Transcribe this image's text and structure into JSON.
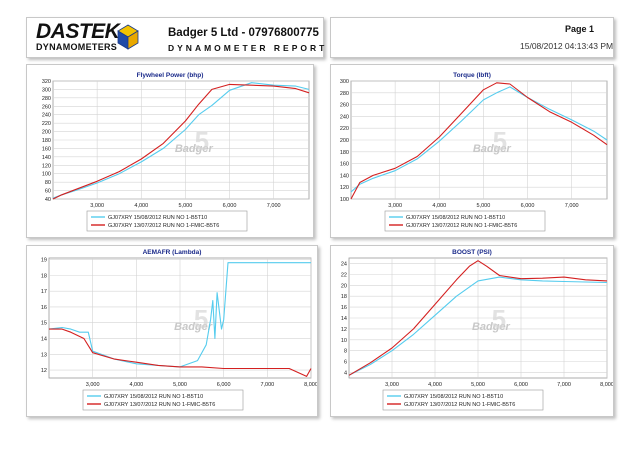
{
  "header": {
    "brand_main": "DASTEK",
    "brand_sub": "DYNAMOMETERS",
    "company": "Badger 5 Ltd - 07976800775",
    "report_title": "DYNAMOMETER REPORT",
    "page_label": "Page 1",
    "timestamp": "15/08/2012 04:13:43 PM"
  },
  "watermark": "Badger",
  "colors": {
    "run1": "#55ccee",
    "run2": "#d42020"
  },
  "chart_data": [
    {
      "type": "line",
      "title": "Flywheel Power (bhp)",
      "xlim": [
        2000,
        7800
      ],
      "ylim": [
        40,
        320
      ],
      "xticks": [
        3000,
        4000,
        5000,
        6000,
        7000
      ],
      "xtick_labels": [
        "3,000",
        "4,000",
        "5,000",
        "6,000",
        "7,000"
      ],
      "yticks": [
        40,
        60,
        80,
        100,
        120,
        140,
        160,
        180,
        200,
        220,
        240,
        260,
        280,
        300,
        320
      ],
      "grid": true,
      "legend_position": "bottom",
      "series": [
        {
          "name": "GJ07XRY 15/08/2012 RUN NO 1-B5T10",
          "color": "#55ccee",
          "x": [
            2000,
            2200,
            2500,
            3000,
            3500,
            4000,
            4500,
            5000,
            5300,
            5600,
            6000,
            6500,
            7000,
            7500,
            7800
          ],
          "y": [
            42,
            50,
            60,
            78,
            100,
            128,
            160,
            205,
            240,
            262,
            298,
            316,
            310,
            308,
            300
          ]
        },
        {
          "name": "GJ07XRY 13/07/2012 RUN NO 1-FMIC-B5T6",
          "color": "#d42020",
          "x": [
            2000,
            2200,
            2500,
            3000,
            3500,
            4000,
            4500,
            5000,
            5300,
            5600,
            6000,
            6500,
            7000,
            7500,
            7800
          ],
          "y": [
            40,
            50,
            62,
            82,
            105,
            135,
            172,
            225,
            265,
            300,
            312,
            310,
            308,
            302,
            292
          ]
        }
      ]
    },
    {
      "type": "line",
      "title": "Torque (lbft)",
      "xlim": [
        2000,
        7800
      ],
      "ylim": [
        100,
        300
      ],
      "xticks": [
        3000,
        4000,
        5000,
        6000,
        7000
      ],
      "xtick_labels": [
        "3,000",
        "4,000",
        "5,000",
        "6,000",
        "7,000"
      ],
      "yticks": [
        100,
        120,
        140,
        160,
        180,
        200,
        220,
        240,
        260,
        280,
        300
      ],
      "grid": true,
      "legend_position": "bottom",
      "series": [
        {
          "name": "GJ07XRY 15/08/2012 RUN NO 1-B5T10",
          "color": "#55ccee",
          "x": [
            2000,
            2200,
            2500,
            3000,
            3500,
            4000,
            4500,
            5000,
            5300,
            5600,
            6000,
            6500,
            7000,
            7500,
            7800
          ],
          "y": [
            112,
            125,
            135,
            148,
            168,
            198,
            232,
            268,
            280,
            290,
            272,
            252,
            234,
            215,
            200
          ]
        },
        {
          "name": "GJ07XRY 13/07/2012 RUN NO 1-FMIC-B5T6",
          "color": "#d42020",
          "x": [
            2000,
            2200,
            2500,
            3000,
            3500,
            4000,
            4500,
            5000,
            5300,
            5600,
            6000,
            6500,
            7000,
            7500,
            7800
          ],
          "y": [
            100,
            128,
            140,
            152,
            172,
            205,
            245,
            285,
            297,
            295,
            272,
            248,
            230,
            208,
            192
          ]
        }
      ]
    },
    {
      "type": "line",
      "title": "AEMAFR (Lambda)",
      "xlim": [
        2000,
        8000
      ],
      "ylim": [
        11.5,
        19.1
      ],
      "xticks": [
        3000,
        4000,
        5000,
        6000,
        7000,
        8000
      ],
      "xtick_labels": [
        "3,000",
        "4,000",
        "5,000",
        "6,000",
        "7,000",
        "8,000"
      ],
      "yticks": [
        12,
        13,
        14,
        15,
        16,
        17,
        18,
        19
      ],
      "grid": true,
      "legend_position": "bottom",
      "series": [
        {
          "name": "GJ07XRY 15/08/2012 RUN NO 1-B5T10",
          "color": "#55ccee",
          "x": [
            2000,
            2300,
            2500,
            2700,
            2900,
            3000,
            3500,
            4000,
            4500,
            5000,
            5400,
            5600,
            5700,
            5750,
            5800,
            5850,
            5950,
            6000,
            6100,
            7000,
            8000
          ],
          "y": [
            14.6,
            14.7,
            14.6,
            14.4,
            14.4,
            13.2,
            12.7,
            12.4,
            12.3,
            12.2,
            12.6,
            13.6,
            15.2,
            16.4,
            14.0,
            16.9,
            14.6,
            15.2,
            18.8,
            18.8,
            18.8
          ]
        },
        {
          "name": "GJ07XRY 13/07/2012 RUN NO 1-FMIC-B5T6",
          "color": "#d42020",
          "x": [
            2000,
            2300,
            2500,
            2800,
            3000,
            3500,
            4000,
            4500,
            5000,
            5500,
            6000,
            6500,
            7000,
            7500,
            7900,
            8000
          ],
          "y": [
            14.6,
            14.6,
            14.4,
            14.0,
            13.1,
            12.7,
            12.5,
            12.3,
            12.2,
            12.2,
            12.1,
            12.1,
            12.1,
            12.1,
            11.6,
            12.1
          ]
        }
      ]
    },
    {
      "type": "line",
      "title": "BOOST (PSI)",
      "xlim": [
        2000,
        8000
      ],
      "ylim": [
        3,
        25
      ],
      "xticks": [
        3000,
        4000,
        5000,
        6000,
        7000,
        8000
      ],
      "xtick_labels": [
        "3,000",
        "4,000",
        "5,000",
        "6,000",
        "7,000",
        "8,000"
      ],
      "yticks": [
        4,
        6,
        8,
        10,
        12,
        14,
        16,
        18,
        20,
        22,
        24
      ],
      "grid": true,
      "legend_position": "bottom",
      "series": [
        {
          "name": "GJ07XRY 15/08/2012 RUN NO 1-B5T10",
          "color": "#55ccee",
          "x": [
            2000,
            2500,
            3000,
            3500,
            4000,
            4500,
            5000,
            5500,
            6000,
            6500,
            7000,
            7500,
            8000
          ],
          "y": [
            3.5,
            5.5,
            8.0,
            11.0,
            14.5,
            18.0,
            20.8,
            21.5,
            21.0,
            20.8,
            20.7,
            20.6,
            20.5
          ]
        },
        {
          "name": "GJ07XRY 13/07/2012 RUN NO 1-FMIC-B5T6",
          "color": "#d42020",
          "x": [
            2000,
            2500,
            3000,
            3500,
            4000,
            4500,
            4800,
            5000,
            5200,
            5500,
            6000,
            6500,
            7000,
            7500,
            8000
          ],
          "y": [
            3.5,
            5.8,
            8.5,
            12.0,
            16.5,
            21.0,
            23.5,
            24.5,
            23.5,
            21.8,
            21.2,
            21.3,
            21.5,
            21.0,
            20.8
          ]
        }
      ]
    }
  ]
}
